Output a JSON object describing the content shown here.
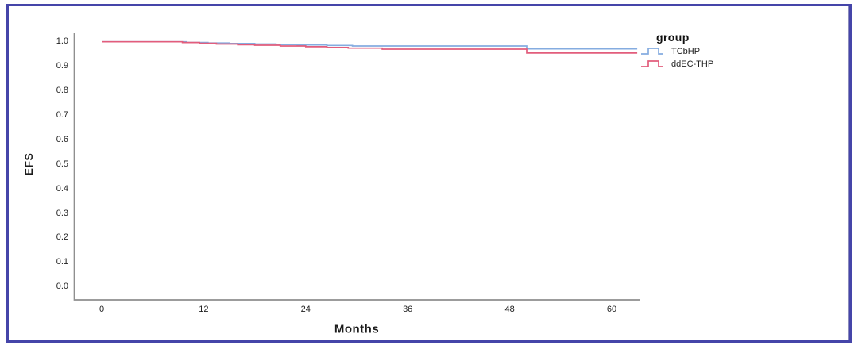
{
  "frame": {
    "border_color": "#4545a9"
  },
  "chart_data": {
    "type": "line",
    "subtype": "kaplan-meier-step",
    "title": "",
    "xlabel": "Months",
    "ylabel": "EFS",
    "legend_title": "group",
    "legend_position": "right",
    "grid": false,
    "x_ticks": [
      0,
      12,
      24,
      36,
      48,
      60
    ],
    "y_ticks": [
      "1.0",
      "0.9",
      "0.8",
      "0.7",
      "0.6",
      "0.5",
      "0.4",
      "0.3",
      "0.2",
      "0.1",
      "0.0"
    ],
    "xlim": [
      0,
      63.2
    ],
    "ylim": [
      0.0,
      1.0
    ],
    "axis_color": "#8f8f8f",
    "series": [
      {
        "name": "TCbHP",
        "color": "#85ace0",
        "points": [
          [
            0,
            1.0
          ],
          [
            10,
            0.997
          ],
          [
            12.5,
            0.995
          ],
          [
            15,
            0.993
          ],
          [
            18,
            0.991
          ],
          [
            20.5,
            0.989
          ],
          [
            23,
            0.987
          ],
          [
            26.5,
            0.985
          ],
          [
            29.5,
            0.983
          ],
          [
            50,
            0.971
          ],
          [
            63,
            0.971
          ]
        ]
      },
      {
        "name": "ddEC-THP",
        "color": "#e25d7c",
        "points": [
          [
            0,
            1.0
          ],
          [
            9.5,
            0.997
          ],
          [
            11.5,
            0.994
          ],
          [
            13.5,
            0.991
          ],
          [
            16,
            0.988
          ],
          [
            18,
            0.986
          ],
          [
            21,
            0.983
          ],
          [
            24,
            0.98
          ],
          [
            26.5,
            0.977
          ],
          [
            29,
            0.974
          ],
          [
            33,
            0.97
          ],
          [
            50,
            0.954
          ],
          [
            63,
            0.954
          ]
        ]
      }
    ]
  }
}
